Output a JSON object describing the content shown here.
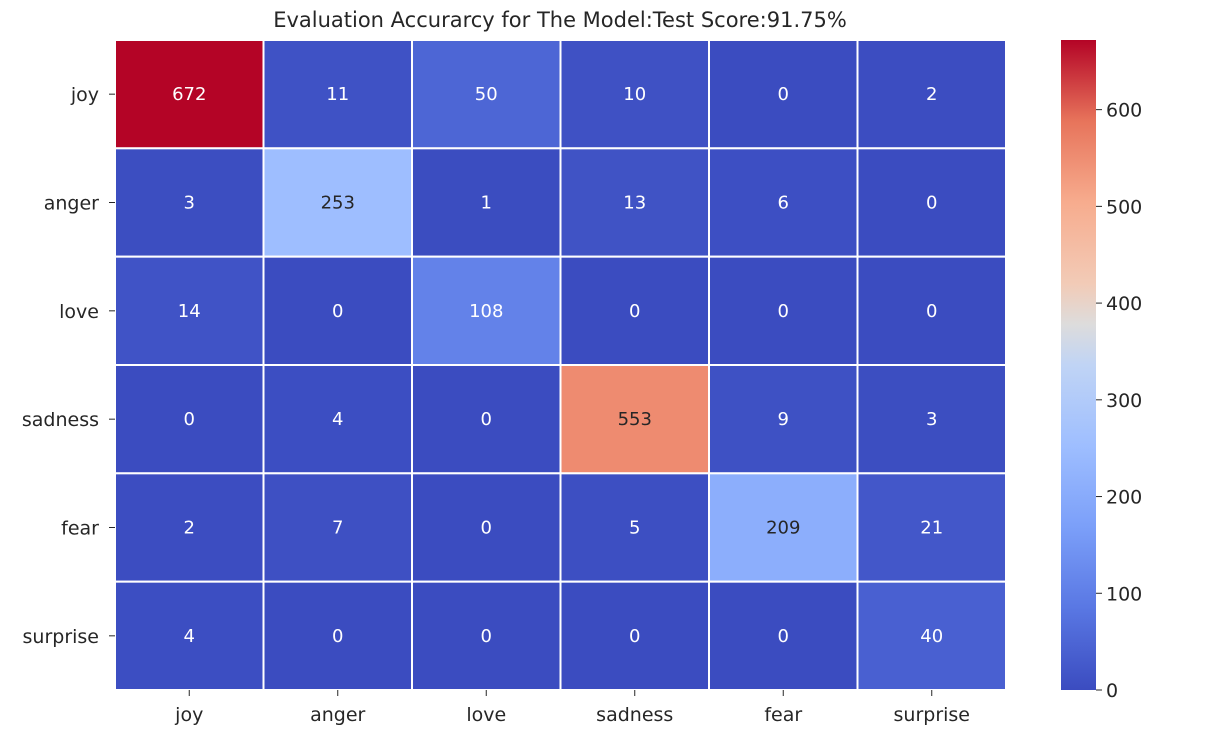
{
  "chart_data": {
    "type": "heatmap",
    "title": "Evaluation Accurarcy for The Model:Test Score:91.75%",
    "xlabel": "",
    "ylabel": "",
    "x_categories": [
      "joy",
      "anger",
      "love",
      "sadness",
      "fear",
      "surprise"
    ],
    "y_categories": [
      "joy",
      "anger",
      "love",
      "sadness",
      "fear",
      "surprise"
    ],
    "values": [
      [
        672,
        11,
        50,
        10,
        0,
        2
      ],
      [
        3,
        253,
        1,
        13,
        6,
        0
      ],
      [
        14,
        0,
        108,
        0,
        0,
        0
      ],
      [
        0,
        4,
        0,
        553,
        9,
        3
      ],
      [
        2,
        7,
        0,
        5,
        209,
        21
      ],
      [
        4,
        0,
        0,
        0,
        0,
        40
      ]
    ],
    "colormap": "coolwarm",
    "colorbar": {
      "min": 0,
      "max": 672,
      "ticks": [
        0,
        100,
        200,
        300,
        400,
        500,
        600
      ],
      "tick_labels": [
        "0",
        "100",
        "200",
        "300",
        "400",
        "500",
        "600"
      ]
    },
    "annotations": true,
    "grid_lines_color": "#ffffff",
    "low_color": "#3b4cc0",
    "high_color": "#b40426"
  }
}
